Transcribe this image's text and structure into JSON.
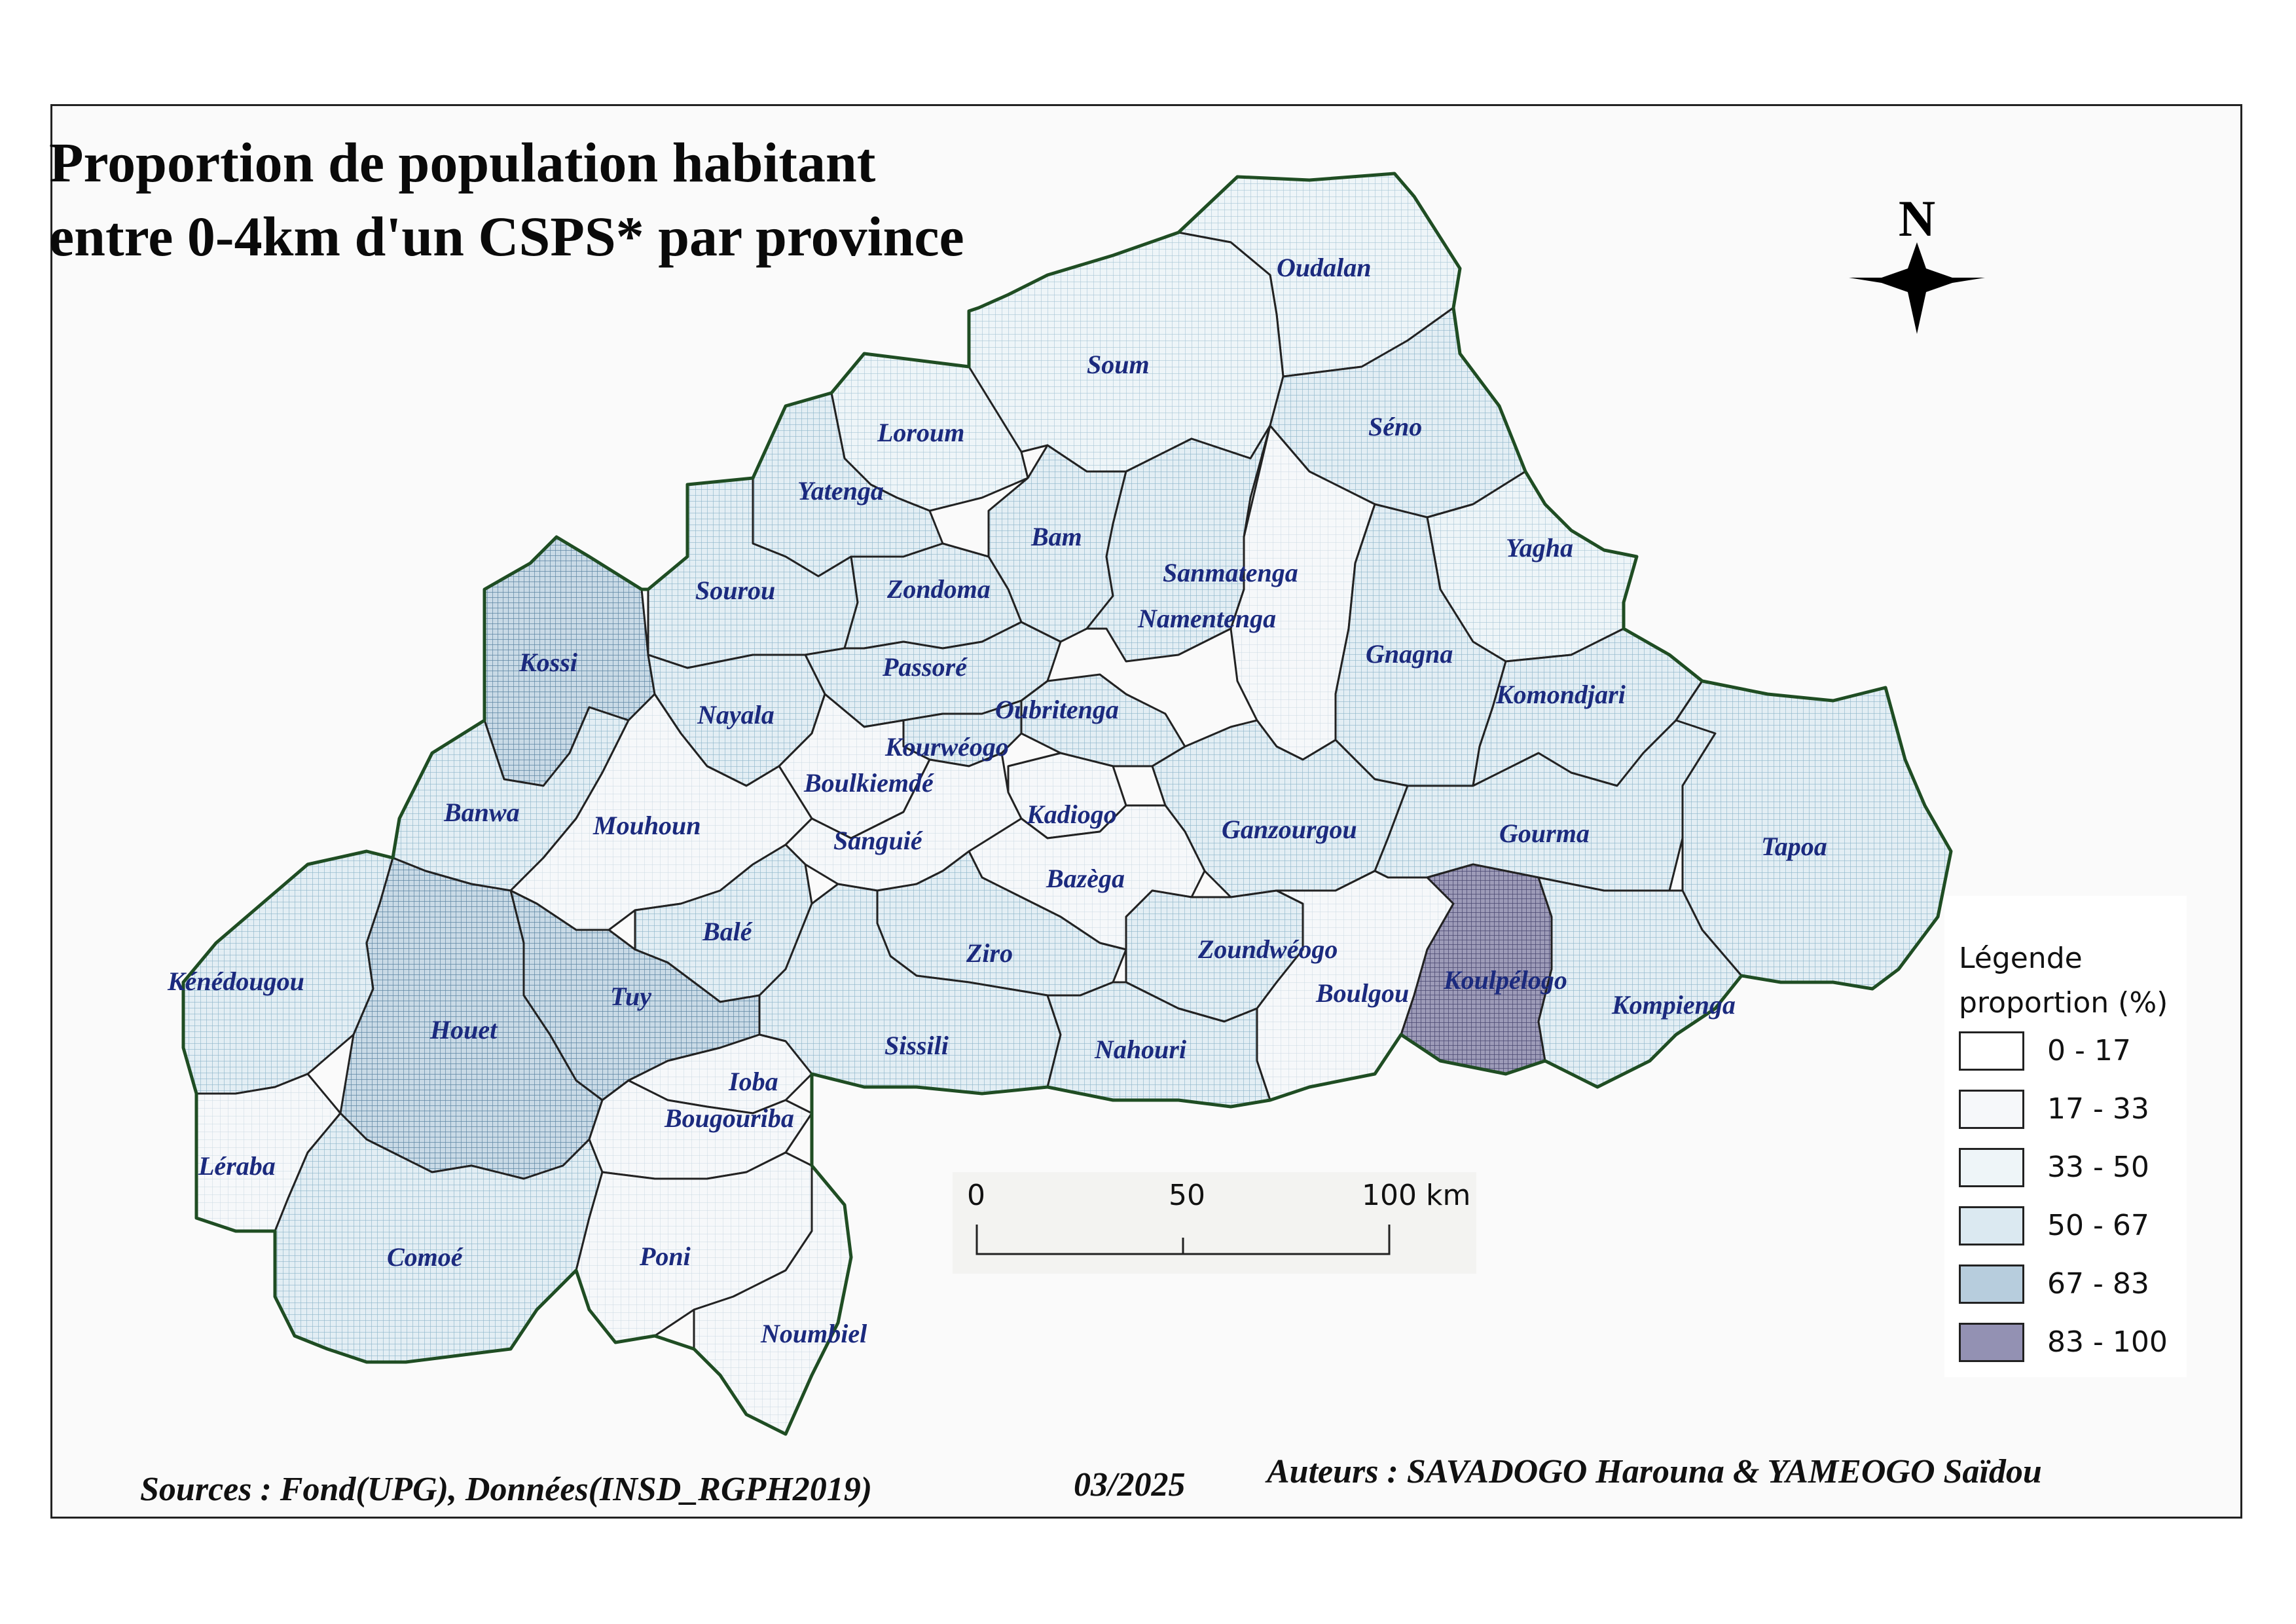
{
  "title": {
    "line1": "Proportion de population habitant",
    "line2": "entre 0-4km d'un CSPS* par province"
  },
  "north_arrow": {
    "letter": "N"
  },
  "legend": {
    "title_line1": "Légende",
    "title_line2": "proportion (%)",
    "classes": [
      {
        "label": "0 - 17",
        "color": "#ffffff"
      },
      {
        "label": "17 - 33",
        "color": "#f4f7fa"
      },
      {
        "label": "33 - 50",
        "color": "#e8f2f6"
      },
      {
        "label": "50 - 67",
        "color": "#d9ebf2"
      },
      {
        "label": "67 - 83",
        "color": "#b9cfe0"
      },
      {
        "label": "83 - 100",
        "color": "#8f8fb0"
      }
    ]
  },
  "scale_bar": {
    "labels": [
      "0",
      "50",
      "100 km"
    ]
  },
  "provinces": [
    {
      "name": "Oudalan",
      "class": 2
    },
    {
      "name": "Soum",
      "class": 2
    },
    {
      "name": "Séno",
      "class": 3
    },
    {
      "name": "Loroum",
      "class": 2
    },
    {
      "name": "Yatenga",
      "class": 3
    },
    {
      "name": "Bam",
      "class": 3
    },
    {
      "name": "Yagha",
      "class": 2
    },
    {
      "name": "Sanmatenga",
      "class": 3
    },
    {
      "name": "Namentenga",
      "class": 1
    },
    {
      "name": "Sourou",
      "class": 3
    },
    {
      "name": "Zondoma",
      "class": 3
    },
    {
      "name": "Kossi",
      "class": 4
    },
    {
      "name": "Passoré",
      "class": 3
    },
    {
      "name": "Gnagna",
      "class": 3
    },
    {
      "name": "Komondjari",
      "class": 3
    },
    {
      "name": "Nayala",
      "class": 3
    },
    {
      "name": "Oubritenga",
      "class": 3
    },
    {
      "name": "Kourwéogo",
      "class": 3
    },
    {
      "name": "Boulkiemdé",
      "class": 1
    },
    {
      "name": "Banwa",
      "class": 3
    },
    {
      "name": "Mouhoun",
      "class": 0
    },
    {
      "name": "Kadiogo",
      "class": 1
    },
    {
      "name": "Sanguié",
      "class": 1
    },
    {
      "name": "Ganzourgou",
      "class": 3
    },
    {
      "name": "Gourma",
      "class": 3
    },
    {
      "name": "Tapoa",
      "class": 3
    },
    {
      "name": "Bazèga",
      "class": 1
    },
    {
      "name": "Balé",
      "class": 3
    },
    {
      "name": "Ziro",
      "class": 3
    },
    {
      "name": "Zoundwéogo",
      "class": 3
    },
    {
      "name": "Kénédougou",
      "class": 3
    },
    {
      "name": "Tuy",
      "class": 4
    },
    {
      "name": "Boulgou",
      "class": 1
    },
    {
      "name": "Koulpélogo",
      "class": 5
    },
    {
      "name": "Kompienga",
      "class": 3
    },
    {
      "name": "Houet",
      "class": 4
    },
    {
      "name": "Sissili",
      "class": 3
    },
    {
      "name": "Nahouri",
      "class": 3
    },
    {
      "name": "Ioba",
      "class": 1
    },
    {
      "name": "Bougouriba",
      "class": 1
    },
    {
      "name": "Léraba",
      "class": 1
    },
    {
      "name": "Comoé",
      "class": 3
    },
    {
      "name": "Poni",
      "class": 1
    },
    {
      "name": "Noumbiel",
      "class": 1
    }
  ],
  "footer": {
    "sources": "Sources : Fond(UPG), Données(INSD_RGPH2019)",
    "date": "03/2025",
    "authors": "Auteurs : SAVADOGO Harouna & YAMEOGO Saïdou"
  }
}
